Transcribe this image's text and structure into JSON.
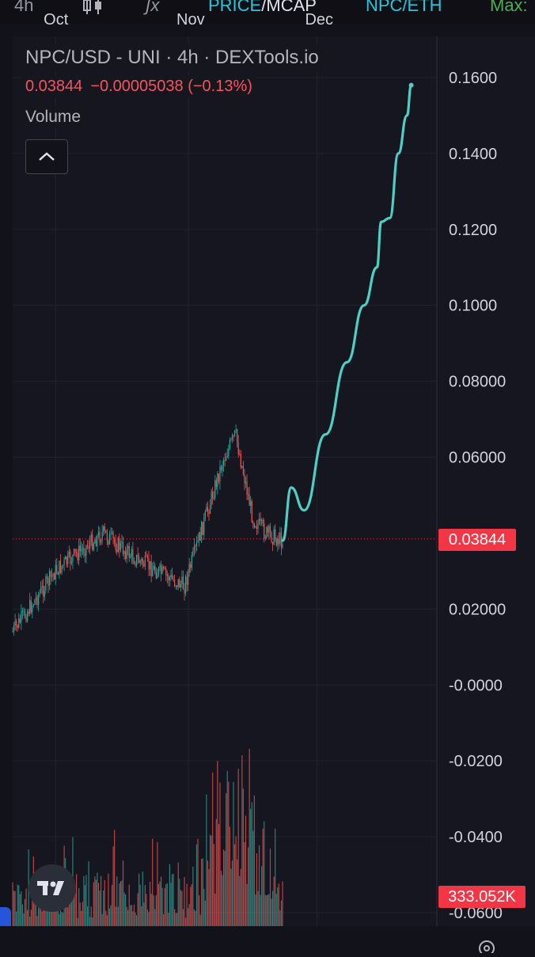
{
  "toolbar": {
    "interval": "4h",
    "candles_icon": "candles-icon",
    "indicators_icon": "fx-icon",
    "price_label": "PRICE",
    "separator": "/",
    "mcap_label": "MCAP",
    "pair_label": "NPC/ETH",
    "max_label": "Max:"
  },
  "legend": {
    "title": "NPC/USD - UNI · 4h · DEXTools.io",
    "price": "0.03844",
    "change": "−0.00005038 (−0.13%)",
    "volume_label": "Volume"
  },
  "price_tags": {
    "last_price": "0.03844",
    "volume": "333.052K"
  },
  "colors": {
    "background": "#161620",
    "up": "#26a69a",
    "down": "#ef5350",
    "drawing": "#4dd0c4",
    "tag": "#f23645",
    "accent_blue": "#2962ff"
  },
  "chart_data": {
    "type": "candlestick",
    "y_axis": {
      "ticks": [
        "0.1600",
        "0.1400",
        "0.1200",
        "0.1000",
        "0.08000",
        "0.06000",
        "0.02000",
        "-0.0000",
        "-0.0200",
        "-0.0400",
        "-0.0600"
      ],
      "values": [
        0.16,
        0.14,
        0.12,
        0.1,
        0.08,
        0.06,
        0.02,
        0.0,
        -0.02,
        -0.04,
        -0.06
      ],
      "range": [
        -0.062,
        0.168
      ]
    },
    "x_axis": {
      "ticks": [
        "Oct",
        "Nov",
        "Dec"
      ]
    },
    "last_price": 0.03844,
    "price_path_dates": [
      "Sep 21",
      "Oct 1",
      "Oct 12",
      "Oct 20",
      "Oct 31",
      "Nov 2",
      "Nov 9",
      "Nov 12",
      "Nov 16",
      "Nov 19",
      "Nov 23"
    ],
    "price_path_values": [
      0.014,
      0.03,
      0.04,
      0.033,
      0.026,
      0.033,
      0.059,
      0.066,
      0.044,
      0.04,
      0.038
    ],
    "drawn_projection_dates": [
      "Nov 23",
      "Nov 25",
      "Nov 28",
      "Dec 3",
      "Dec 8",
      "Dec 12",
      "Dec 15",
      "Dec 16",
      "Dec 18",
      "Dec 20",
      "Dec 22",
      "Dec 23"
    ],
    "drawn_projection_values": [
      0.038,
      0.052,
      0.046,
      0.066,
      0.085,
      0.1,
      0.11,
      0.122,
      0.123,
      0.14,
      0.15,
      0.158
    ],
    "volume_tag": "333.052K"
  }
}
